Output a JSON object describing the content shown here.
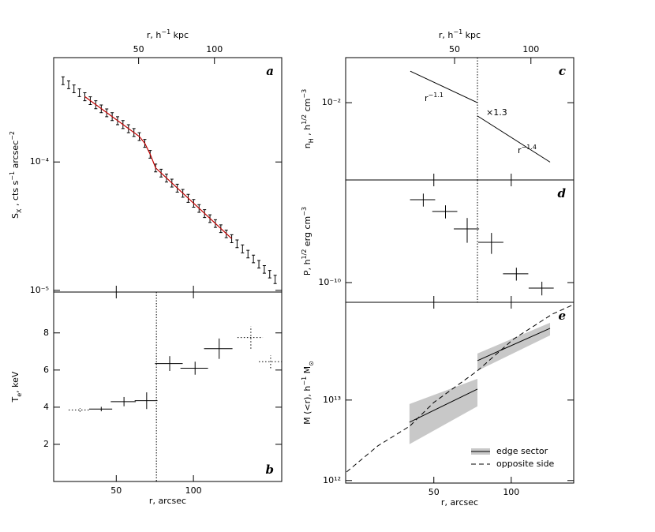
{
  "chart_data": [
    {
      "type": "errorbar",
      "label": "a",
      "xlim": [
        28.5,
        221
      ],
      "xticks": [
        50,
        100
      ],
      "x2lim": [
        23,
        185
      ],
      "x2ticks": [
        50,
        100
      ],
      "x2label": [
        "r, h",
        {
          "sup": "−1"
        },
        " kpc"
      ],
      "ylog": true,
      "ylim": [
        9.7e-06,
        0.00065
      ],
      "yticks": [
        {
          "value": 0.0001,
          "label": "10⁻⁴"
        },
        {
          "value": 1e-05,
          "label": "10⁻⁵"
        }
      ],
      "ylabel": [
        "S",
        {
          "sub": "X"
        },
        " , cts s",
        {
          "sup": "−1"
        },
        " arcsec",
        {
          "sup": "−2"
        }
      ],
      "series": [
        {
          "style": "solid",
          "color": "#000000",
          "x": [
            31,
            32.6,
            34.2,
            35.9,
            37.7,
            39.6,
            41.6,
            43.7,
            45.9,
            48.2,
            50.6,
            53.1,
            55.8,
            58.6,
            61.5,
            64.6,
            67.8,
            71.2,
            74.8,
            78.5,
            82.4,
            86.5,
            90.9,
            95.4,
            100.2,
            105.2,
            110.5,
            116,
            121.8,
            127.9,
            134.3,
            141,
            148,
            155.4,
            163.2,
            171.4,
            180,
            189,
            198.4,
            208.3
          ],
          "values": [
            0.00043,
            0.0004,
            0.000372,
            0.000347,
            0.000323,
            0.000301,
            0.00028,
            0.00026,
            0.000242,
            0.000226,
            0.00021,
            0.000196,
            0.000182,
            0.00017,
            0.000158,
            0.00014,
            0.000115,
            9e-05,
            8.21e-05,
            7.51e-05,
            6.86e-05,
            6.27e-05,
            5.71e-05,
            5.22e-05,
            4.77e-05,
            4.35e-05,
            3.97e-05,
            3.63e-05,
            3.32e-05,
            3.03e-05,
            2.76e-05,
            2.53e-05,
            2.31e-05,
            2.11e-05,
            1.92e-05,
            1.76e-05,
            1.6e-05,
            1.46e-05,
            1.34e-05,
            1.22e-05
          ],
          "errors": [
            3e-05,
            2.8e-05,
            2.6e-05,
            2.4e-05,
            2.3e-05,
            2.1e-05,
            2e-05,
            1.8e-05,
            1.7e-05,
            1.6e-05,
            1.5e-05,
            1.4e-05,
            1.3e-05,
            1.2e-05,
            1.1e-05,
            1e-05,
            8e-06,
            6.3e-06,
            5.7e-06,
            5.3e-06,
            4.8e-06,
            4.4e-06,
            4e-06,
            3.7e-06,
            3.3e-06,
            3e-06,
            2.8e-06,
            2.5e-06,
            2.3e-06,
            2.1e-06,
            1.9e-06,
            1.8e-06,
            1.6e-06,
            1.5e-06,
            1.3e-06,
            1.2e-06,
            1.1e-06,
            1e-06,
            9e-07,
            9e-07
          ]
        }
      ],
      "model": {
        "color": "#c00000",
        "x": [
          37.7,
          61.5,
          64.6,
          67.8,
          71.2,
          141
        ],
        "values": [
          0.000323,
          0.000158,
          0.00014,
          0.000115,
          9e-05,
          2.53e-05
        ]
      }
    },
    {
      "type": "errorbar",
      "label": "b",
      "xlim": [
        28.5,
        221
      ],
      "xticks": [
        50,
        100
      ],
      "xlabel": [
        "r, arcsec"
      ],
      "ylim": [
        0,
        10.2
      ],
      "yticks": [
        2,
        4,
        6,
        8
      ],
      "ylabel": [
        "T",
        {
          "sub": "e"
        },
        ", keV"
      ],
      "vline": 71.7,
      "series": [
        {
          "style": "dotted",
          "color": "#000000",
          "x": [
            36.1,
            167.5,
            200
          ],
          "values": [
            3.85,
            7.75,
            6.45
          ],
          "errors": [
            0.1,
            0.6,
            0.35
          ],
          "xerr": [
            3.5,
            19,
            20
          ]
        },
        {
          "style": "solid",
          "color": "#000000",
          "x": [
            43.7,
            53.6,
            65.7,
            80.8,
            101.5,
            126
          ],
          "values": [
            3.9,
            4.3,
            4.35,
            6.35,
            6.1,
            7.15
          ],
          "errors": [
            0.12,
            0.25,
            0.45,
            0.4,
            0.35,
            0.55
          ],
          "xerr": [
            4.5,
            6,
            6.7,
            10,
            12.5,
            16
          ]
        }
      ]
    },
    {
      "type": "line",
      "label": "c",
      "xlim": [
        22.7,
        175
      ],
      "xticks": [
        50,
        100
      ],
      "x2lim": [
        18.6,
        147.5
      ],
      "x2ticks": [
        50,
        100
      ],
      "x2label": [
        "r, h",
        {
          "sup": "−1"
        },
        " kpc"
      ],
      "ylog": true,
      "ylim": [
        0.00218,
        0.0243
      ],
      "yticks": [
        {
          "value": 0.01,
          "label": "10⁻²"
        }
      ],
      "ylabel": [
        "n",
        {
          "sub": "H"
        },
        " , h",
        {
          "sup": "1/2"
        },
        " cm",
        {
          "sup": "−3"
        }
      ],
      "vline": 73.9,
      "series": [
        {
          "style": "solid",
          "color": "#000000",
          "x": [
            40.5,
            73.9,
            null,
            73.9,
            141.6
          ],
          "values": [
            0.0186,
            0.01,
            null,
            0.0077,
            0.0031
          ]
        }
      ],
      "annotations": [
        [
          "r",
          {
            "sup": "−1.1"
          }
        ],
        [
          "×1.3"
        ],
        [
          "r",
          {
            "sup": "−1.4"
          }
        ]
      ]
    },
    {
      "type": "errorbar",
      "label": "d",
      "xlim": [
        22.7,
        175
      ],
      "xticks": [
        50,
        100
      ],
      "ylog": true,
      "ylim": [
        6.78e-11,
        7.55e-10
      ],
      "yticks": [
        {
          "value": 1e-10,
          "label": "10⁻¹⁰"
        }
      ],
      "ylabel": [
        "P, h",
        {
          "sup": "1/2"
        },
        " erg cm",
        {
          "sup": "−3"
        }
      ],
      "vline": 73.9,
      "series": [
        {
          "style": "solid",
          "color": "#000000",
          "x": [
            45.5,
            55.5,
            67.4,
            83.8,
            104.7,
            131.6
          ],
          "values": [
            5.12e-10,
            4.06e-10,
            2.88e-10,
            2.21e-10,
            1.19e-10,
            8.97e-11
          ],
          "errors": [
            6.5e-11,
            5.2e-11,
            6.9e-11,
            4.5e-11,
            1.5e-11,
            1.2e-11
          ],
          "xerr": [
            5.1,
            6.2,
            7.6,
            9.4,
            11.8,
            14.7
          ]
        }
      ]
    },
    {
      "type": "band",
      "label": "e",
      "xlim": [
        22.7,
        175
      ],
      "xticks": [
        50,
        100
      ],
      "xlabel": [
        "r, arcsec"
      ],
      "ylog": true,
      "ylim": [
        930000000000.0,
        164000000000000.0
      ],
      "yticks": [
        {
          "value": 1000000000000.0,
          "label": "10¹²"
        },
        {
          "value": 10000000000000.0,
          "label": "10¹³"
        }
      ],
      "ylabel": [
        "M (<r),  h",
        {
          "sup": "−1"
        },
        " M",
        {
          "sub": "⊙"
        }
      ],
      "legend": "lower right",
      "series": [
        {
          "name": "edge sector",
          "style": "solid",
          "color": "#000000",
          "band_color": "#c8c8c8",
          "x": [
            40.2,
            73.9,
            null,
            73.9,
            141.6
          ],
          "values": [
            5300000000000.0,
            13700000000000.0,
            null,
            30900000000000.0,
            78000000000000.0
          ],
          "lower": [
            2830000000000.0,
            8360000000000.0,
            null,
            23100000000000.0,
            63700000000000.0
          ],
          "upper": [
            8930000000000.0,
            18400000000000.0,
            null,
            37900000000000.0,
            91400000000000.0
          ]
        },
        {
          "name": "opposite side",
          "style": "dashed",
          "color": "#000000",
          "x": [
            22.9,
            30.3,
            40.3,
            50,
            73.9,
            101.8,
            144.5,
            175
          ],
          "values": [
            1280000000000.0,
            2700000000000.0,
            4740000000000.0,
            9340000000000.0,
            23100000000000.0,
            56900000000000.0,
            117000000000000.0,
            154000000000000.0
          ]
        }
      ]
    }
  ]
}
